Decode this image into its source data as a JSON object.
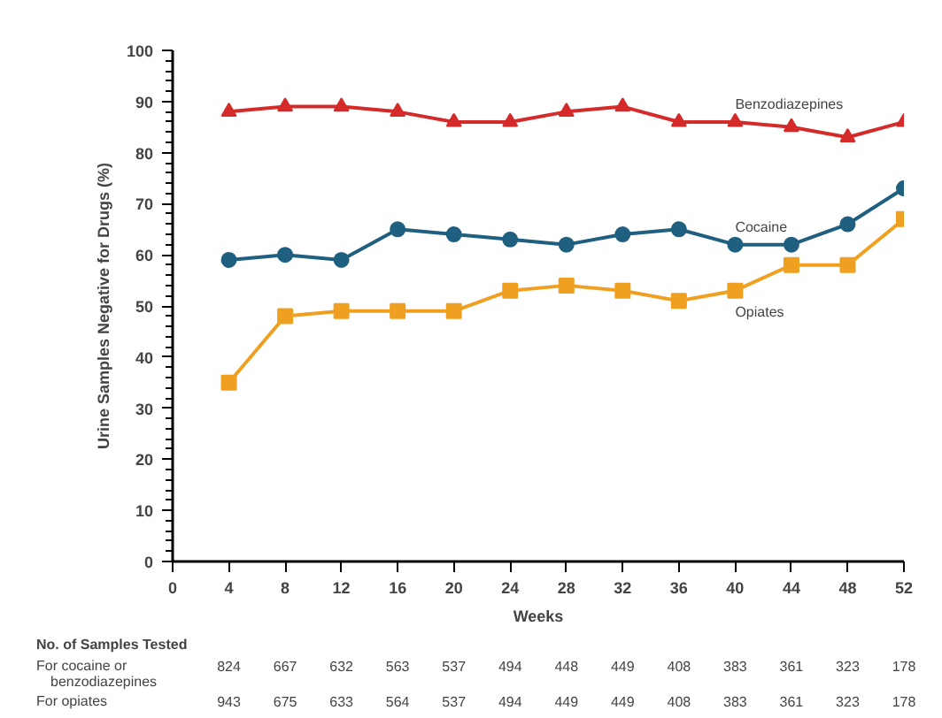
{
  "chart_data": {
    "type": "line",
    "xlabel": "Weeks",
    "ylabel": "Urine Samples Negative for Drugs (%)",
    "x": [
      4,
      8,
      12,
      16,
      20,
      24,
      28,
      32,
      36,
      40,
      44,
      48,
      52
    ],
    "series": [
      {
        "name": "Benzodiazepines",
        "color": "#d42a2a",
        "marker": "triangle",
        "values": [
          88,
          89,
          89,
          88,
          86,
          86,
          88,
          89,
          86,
          86,
          85,
          83,
          86
        ]
      },
      {
        "name": "Cocaine",
        "color": "#1f5f7f",
        "marker": "circle",
        "values": [
          59,
          60,
          59,
          65,
          64,
          63,
          62,
          64,
          65,
          62,
          62,
          66,
          73
        ]
      },
      {
        "name": "Opiates",
        "color": "#f0a020",
        "marker": "square",
        "values": [
          35,
          48,
          49,
          49,
          49,
          53,
          54,
          53,
          51,
          53,
          58,
          58,
          67
        ]
      }
    ],
    "xlim": [
      0,
      52
    ],
    "xticks": [
      0,
      4,
      8,
      12,
      16,
      20,
      24,
      28,
      32,
      36,
      40,
      44,
      48,
      52
    ],
    "ylim": [
      0,
      100
    ],
    "yticks": [
      0,
      10,
      20,
      30,
      40,
      50,
      60,
      70,
      80,
      90,
      100
    ],
    "grid": false,
    "line_style": "solid",
    "annotations": [
      "No. of Samples Tested",
      "For cocaine or\nbenzodiazepines",
      "824",
      "667",
      "632",
      "563",
      "537",
      "494",
      "448",
      "449",
      "408",
      "383",
      "361",
      "323",
      "178",
      "For opiates",
      "943",
      "675",
      "633",
      "564",
      "537",
      "494",
      "449",
      "449",
      "408",
      "383",
      "361",
      "323",
      "178"
    ]
  }
}
